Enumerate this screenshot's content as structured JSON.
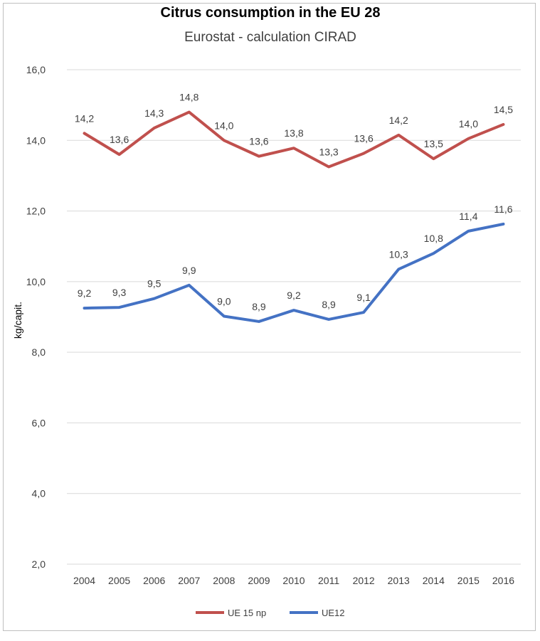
{
  "chart_data": {
    "type": "line",
    "title": "Citrus consumption in the EU 28",
    "subtitle": "Eurostat - calculation CIRAD",
    "xlabel": "",
    "ylabel": "kg/capit.",
    "ylim": [
      2.0,
      16.0
    ],
    "yticks": [
      "2,0",
      "4,0",
      "6,0",
      "8,0",
      "10,0",
      "12,0",
      "14,0",
      "16,0"
    ],
    "ytick_values": [
      2,
      4,
      6,
      8,
      10,
      12,
      14,
      16
    ],
    "categories": [
      "2004",
      "2005",
      "2006",
      "2007",
      "2008",
      "2009",
      "2010",
      "2011",
      "2012",
      "2013",
      "2014",
      "2015",
      "2016"
    ],
    "grid": "horizontal",
    "legend_position": "bottom",
    "series": [
      {
        "name": "UE 15 np",
        "color": "#c0504d",
        "values": [
          14.2,
          13.6,
          14.35,
          14.8,
          14.0,
          13.55,
          13.78,
          13.25,
          13.63,
          14.15,
          13.48,
          14.05,
          14.45
        ],
        "labels": [
          "14,2",
          "13,6",
          "14,3",
          "14,8",
          "14,0",
          "13,6",
          "13,8",
          "13,3",
          "13,6",
          "14,2",
          "13,5",
          "14,0",
          "14,5"
        ]
      },
      {
        "name": "UE12",
        "color": "#4472c4",
        "values": [
          9.25,
          9.27,
          9.52,
          9.9,
          9.02,
          8.87,
          9.19,
          8.93,
          9.13,
          10.35,
          10.8,
          11.43,
          11.63
        ],
        "labels": [
          "9,2",
          "9,3",
          "9,5",
          "9,9",
          "9,0",
          "8,9",
          "9,2",
          "8,9",
          "9,1",
          "10,3",
          "10,8",
          "11,4",
          "11,6"
        ]
      }
    ]
  }
}
